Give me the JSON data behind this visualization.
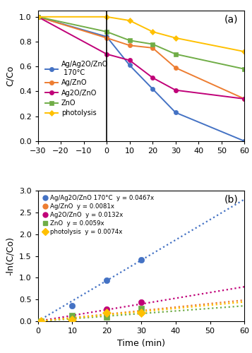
{
  "panel_a": {
    "title": "(a)",
    "ylabel": "C/Co",
    "xlim": [
      -30,
      60
    ],
    "ylim": [
      0,
      1.05
    ],
    "xticks": [
      -30,
      -20,
      -10,
      0,
      10,
      20,
      30,
      40,
      50,
      60
    ],
    "yticks": [
      0,
      0.2,
      0.4,
      0.6,
      0.8,
      1.0
    ],
    "series": [
      {
        "label": "Ag/Ag2O/ZnO\n 170°C",
        "color": "#4472C4",
        "marker": "o",
        "x": [
          -30,
          0,
          10,
          20,
          30,
          60
        ],
        "y": [
          1.0,
          0.84,
          0.61,
          0.42,
          0.23,
          0.0
        ]
      },
      {
        "label": "Ag/ZnO",
        "color": "#ED7D31",
        "marker": "o",
        "x": [
          -30,
          0,
          10,
          20,
          30,
          60
        ],
        "y": [
          1.0,
          0.83,
          0.77,
          0.75,
          0.59,
          0.34
        ]
      },
      {
        "label": "Ag2O/ZnO",
        "color": "#C00078",
        "marker": "o",
        "x": [
          -30,
          0,
          10,
          20,
          30,
          60
        ],
        "y": [
          1.0,
          0.7,
          0.65,
          0.51,
          0.41,
          0.34
        ]
      },
      {
        "label": "ZnO",
        "color": "#70AD47",
        "marker": "s",
        "x": [
          -30,
          0,
          10,
          20,
          30,
          60
        ],
        "y": [
          1.0,
          0.88,
          0.81,
          0.78,
          0.7,
          0.58
        ]
      },
      {
        "label": "photolysis",
        "color": "#FFC000",
        "marker": "D",
        "x": [
          -30,
          0,
          10,
          20,
          30,
          60
        ],
        "y": [
          1.0,
          1.0,
          0.97,
          0.88,
          0.83,
          0.72
        ]
      }
    ]
  },
  "panel_b": {
    "title": "(b)",
    "xlabel": "Time (min)",
    "ylabel": "-ln(C/Co)",
    "xlim": [
      0,
      60
    ],
    "ylim": [
      0,
      3.0
    ],
    "xticks": [
      0,
      10,
      20,
      30,
      40,
      50,
      60
    ],
    "yticks": [
      0,
      0.5,
      1.0,
      1.5,
      2.0,
      2.5,
      3.0
    ],
    "series": [
      {
        "label": "Ag/Ag2O/ZnO 170°C",
        "equation": "y = 0.0467x",
        "slope": 0.0467,
        "color": "#4472C4",
        "marker": "o",
        "x": [
          1,
          10,
          20,
          30
        ],
        "y": [
          0.0,
          0.35,
          0.94,
          1.41
        ]
      },
      {
        "label": "Ag/ZnO",
        "equation": "y = 0.0081x",
        "slope": 0.0081,
        "color": "#ED7D31",
        "marker": "o",
        "x": [
          1,
          10,
          20,
          30
        ],
        "y": [
          0.0,
          0.07,
          0.14,
          0.2
        ]
      },
      {
        "label": "Ag2O/ZnO",
        "equation": "y = 0.0132x",
        "slope": 0.0132,
        "color": "#C00078",
        "marker": "o",
        "x": [
          1,
          10,
          20,
          30
        ],
        "y": [
          0.0,
          0.09,
          0.27,
          0.44
        ]
      },
      {
        "label": "ZnO",
        "equation": "y = 0.0059x",
        "slope": 0.0059,
        "color": "#70AD47",
        "marker": "s",
        "x": [
          1,
          10,
          20,
          30
        ],
        "y": [
          0.0,
          0.13,
          0.1,
          0.29
        ]
      },
      {
        "label": "photolysis",
        "equation": "y = 0.0074x",
        "slope": 0.0074,
        "color": "#FFC000",
        "marker": "D",
        "x": [
          1,
          10,
          20,
          30
        ],
        "y": [
          0.0,
          0.03,
          0.19,
          0.19
        ]
      }
    ]
  },
  "background_color": "#FFFFFF"
}
